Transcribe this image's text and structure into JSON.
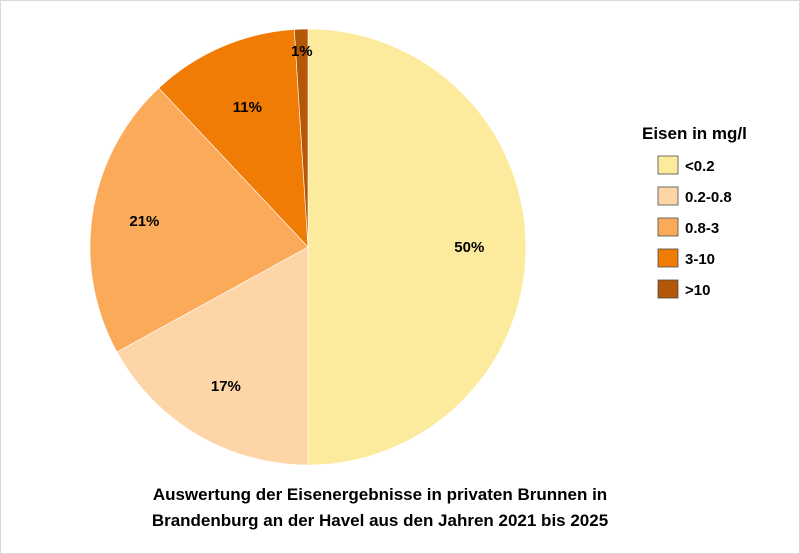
{
  "chart_data": {
    "type": "pie",
    "title_lines": [
      "Auswertung der Eisenergebnisse in privaten Brunnen in",
      "Brandenburg an der Havel aus den Jahren 2021 bis 2025"
    ],
    "legend_title": "Eisen in mg/l",
    "legend_placement": "right",
    "slices": [
      {
        "label": "<0.2",
        "value": 50,
        "value_label": "50%",
        "color": "#FCEB9C"
      },
      {
        "label": "0.2-0.8",
        "value": 17,
        "value_label": "17%",
        "color": "#FDD5A7"
      },
      {
        "label": "0.8-3",
        "value": 21,
        "value_label": "21%",
        "color": "#FBAA5A"
      },
      {
        "label": "3-10",
        "value": 11,
        "value_label": "11%",
        "color": "#F07B05"
      },
      {
        "label": ">10",
        "value": 1,
        "value_label": "1%",
        "color": "#B35806"
      }
    ]
  }
}
